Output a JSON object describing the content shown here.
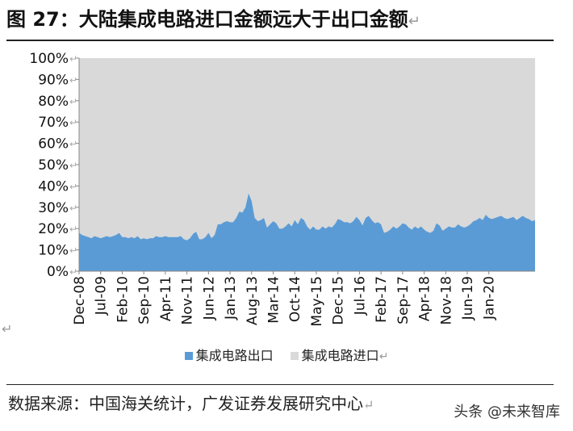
{
  "title": "图 27：大陆集成电路进口金额远大于出口金额",
  "return_mark": "↵",
  "source_text": "数据来源：中国海关统计，广发证券发展研究中心",
  "watermark": "头条 @未来智库",
  "colors": {
    "export": "#5b9bd5",
    "import": "#d9d9d9"
  },
  "chart_data": {
    "type": "area",
    "stacked_percent": true,
    "title": "",
    "xlabel": "",
    "ylabel": "",
    "ylim": [
      0,
      100
    ],
    "y_ticks": [
      "0%",
      "10%",
      "20%",
      "30%",
      "40%",
      "50%",
      "60%",
      "70%",
      "80%",
      "90%",
      "100%"
    ],
    "x_tick_labels": [
      "Dec-08",
      "Jul-09",
      "Feb-10",
      "Sep-10",
      "Apr-11",
      "Nov-11",
      "Jun-12",
      "Jan-13",
      "Aug-13",
      "Mar-14",
      "Oct-14",
      "May-15",
      "Dec-15",
      "Jul-16",
      "Feb-17",
      "Sep-17",
      "Apr-18",
      "Nov-18",
      "Jun-19",
      "Jan-20"
    ],
    "legend": [
      "集成电路出口",
      "集成电路进口"
    ],
    "x_start": "Dec-08",
    "x_end": "Jan-20",
    "series": [
      {
        "name": "集成电路出口",
        "values": [
          18,
          17,
          16.5,
          16,
          15.5,
          16.5,
          16,
          15.5,
          16,
          16.5,
          16,
          16.5,
          17,
          18,
          16,
          16,
          15.5,
          16,
          15.5,
          16.5,
          15,
          15.5,
          15,
          15.5,
          15.5,
          16.5,
          16,
          16,
          16.5,
          16,
          16,
          16,
          16,
          16.5,
          15,
          14.5,
          15.5,
          17.5,
          18.5,
          15,
          15,
          16,
          18,
          15.5,
          17,
          22,
          22,
          23,
          23.5,
          23,
          23,
          25,
          28,
          27.5,
          30,
          36.5,
          33,
          25,
          23.5,
          24,
          25,
          20.5,
          22,
          23.5,
          22.5,
          20,
          20,
          21,
          22.5,
          21,
          24,
          22,
          25,
          24,
          21,
          19.5,
          21,
          19.5,
          19.5,
          21,
          20,
          21,
          20.5,
          22,
          24.5,
          24,
          23,
          23,
          22.5,
          23.5,
          25.5,
          24,
          21.5,
          25,
          26,
          24,
          22.5,
          23,
          22,
          18,
          18.5,
          19.5,
          21,
          20,
          21,
          22.5,
          22,
          20.5,
          19.5,
          21,
          20,
          21,
          19.5,
          18.5,
          18,
          19,
          22.5,
          21.5,
          19,
          20,
          21,
          20.5,
          20.5,
          22,
          21,
          20.5,
          21,
          22,
          23.5,
          24,
          25,
          24,
          26.5,
          25,
          24.5,
          25,
          25.5,
          26,
          25,
          24.5,
          25,
          25.5,
          24,
          25,
          26,
          25,
          24.5,
          23.5,
          24
        ]
      },
      {
        "name": "集成电路进口",
        "complement_of": "集成电路出口",
        "total": 100
      }
    ]
  }
}
